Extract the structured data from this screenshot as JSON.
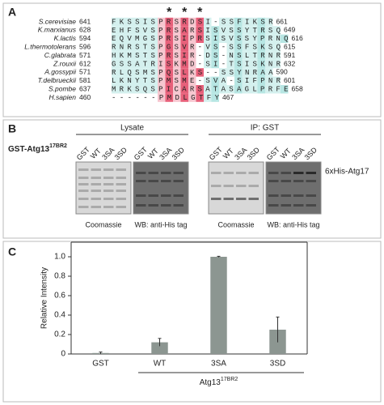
{
  "panel_a": {
    "label": "A",
    "asterisks": [
      "*",
      "*",
      "*"
    ],
    "rows": [
      {
        "species": "S.cerevisiae",
        "start": 641,
        "sequence": "FKSSISPRSRDSI-SSFIKSR",
        "end": 661
      },
      {
        "species": "K.marxianus",
        "start": 628,
        "sequence": "EHFSVSPRSARSISVSSYTRSQ",
        "end": 649
      },
      {
        "species": "K.lactis",
        "start": 594,
        "sequence": "EQVMGSPRSIPRSISVSSYPRNQ",
        "end": 616
      },
      {
        "species": "L.thermotolerans",
        "start": 596,
        "sequence": "RNRSTSPGSVR-VS-SSFSKSQ",
        "end": 615
      },
      {
        "species": "C.glabrata",
        "start": 571,
        "sequence": "HKMSTSPRSIR-DS-NSLTRNR",
        "end": 591
      },
      {
        "species": "Z.rouxii",
        "start": 612,
        "sequence": "GSSATRISKMD-SI-TSISKNR",
        "end": 632
      },
      {
        "species": "A.gossypii",
        "start": 571,
        "sequence": "RLQSMSPQSLKS--SSYNRAA",
        "end": 590
      },
      {
        "species": "T.delbrueckii",
        "start": 581,
        "sequence": "LKNYTSPMSME-SVA-SIFPNR",
        "end": 601
      },
      {
        "species": "S.pombe",
        "start": 637,
        "sequence": "MRKSQSPICARSATASAGLPRFE",
        "end": 658
      },
      {
        "species": "H.sapien",
        "start": 460,
        "sequence": "------PMDLGTFY",
        "end": 467
      }
    ]
  },
  "panel_b": {
    "label": "B",
    "construct": {
      "text": "GST-Atg13",
      "superscript": "17BR2"
    },
    "groups": [
      {
        "title": "Lysate",
        "gels": [
          {
            "lanes": [
              "GST",
              "WT",
              "3SA",
              "3SD"
            ],
            "caption": "Coomassie"
          },
          {
            "lanes": [
              "GST",
              "WT",
              "3SA",
              "3SD"
            ],
            "caption": "WB: anti-His tag"
          }
        ]
      },
      {
        "title": "IP: GST",
        "gels": [
          {
            "lanes": [
              "GST",
              "WT",
              "3SA",
              "3SD"
            ],
            "caption": "Coomassie"
          },
          {
            "lanes": [
              "GST",
              "WT",
              "3SA",
              "3SD"
            ],
            "caption": "WB: anti-His tag"
          }
        ]
      }
    ],
    "band_label": "6xHis-Atg17"
  },
  "chart_data": {
    "type": "bar",
    "panel_label": "C",
    "ylabel": "Relative Intensity",
    "group_label": {
      "text": "Atg13",
      "superscript": "17BR2"
    },
    "categories": [
      "GST",
      "WT",
      "3SA",
      "3SD"
    ],
    "values": [
      0.01,
      0.12,
      1.0,
      0.25
    ],
    "errors": [
      0.01,
      0.04,
      0.005,
      0.13
    ],
    "color": "#8c9691",
    "ylim": [
      0,
      1.15
    ],
    "yticks": [
      0,
      0.2,
      0.4,
      0.6,
      0.8,
      {
        "value": 1,
        "label": "1.0"
      }
    ]
  }
}
